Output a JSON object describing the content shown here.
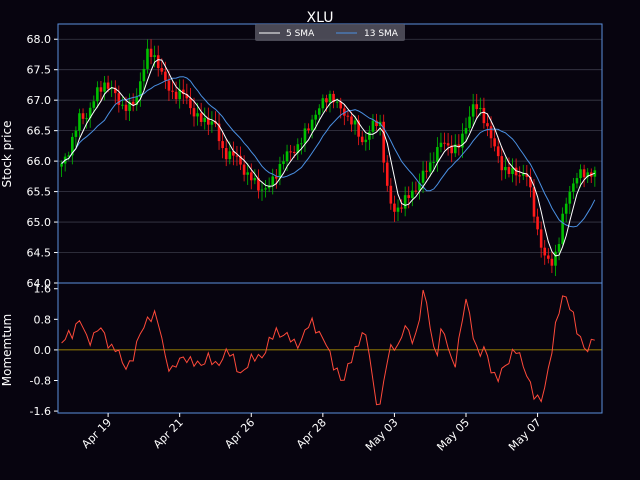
{
  "chart_data": {
    "type": "candlestick",
    "title": "XLU",
    "colors": {
      "background": "#07040f",
      "axes_border": "#5b8fdc",
      "grid": "#3a3a48",
      "up_candle": "#00c000",
      "down_candle": "#ff1a1a",
      "sma_fast": "#ffffff",
      "sma_slow": "#4a90e2",
      "momentum": "#ff4a3a",
      "zero_line": "#c8a800",
      "legend_bg": "#555560"
    },
    "legend": {
      "placement": "top-center",
      "entries": [
        "5 SMA",
        "13 SMA"
      ]
    },
    "price_panel": {
      "ylabel": "Stock price",
      "ylim": [
        64.0,
        68.25
      ],
      "yticks": [
        "64.0",
        "64.5",
        "65.0",
        "65.5",
        "66.0",
        "66.5",
        "67.0",
        "67.5",
        "68.0"
      ],
      "grid": true
    },
    "momentum_panel": {
      "ylabel": "Momemtum",
      "ylim": [
        -1.65,
        1.75
      ],
      "yticks": [
        "-1.6",
        "-0.8",
        "0.0",
        "0.8",
        "1.6"
      ],
      "zero_line": 0
    },
    "xaxis": {
      "ticks": [
        "Apr 19",
        "Apr 21",
        "Apr 26",
        "Apr 28",
        "May 03",
        "May 05",
        "May 07"
      ],
      "tick_positions": [
        14,
        34,
        54,
        74,
        94,
        114,
        134
      ],
      "xlim": [
        0,
        152
      ]
    },
    "close_series": [
      65.92,
      66.12,
      66.45,
      66.72,
      66.72,
      66.95,
      67.15,
      67.28,
      67.2,
      67.02,
      66.9,
      66.88,
      66.95,
      67.4,
      67.75,
      67.75,
      67.55,
      67.25,
      67.12,
      67.1,
      67.1,
      66.9,
      66.72,
      66.65,
      66.68,
      66.62,
      66.2,
      66.12,
      66.1,
      66.0,
      65.8,
      65.7,
      65.6,
      65.52,
      65.6,
      65.8,
      66.0,
      66.12,
      66.2,
      66.3,
      66.5,
      66.72,
      66.85,
      67.02,
      67.1,
      66.9,
      66.8,
      66.7,
      66.55,
      66.3,
      66.45,
      66.62,
      66.62,
      65.6,
      65.15,
      65.25,
      65.35,
      65.45,
      65.6,
      65.78,
      65.9,
      66.15,
      66.3,
      66.25,
      66.2,
      66.25,
      66.6,
      66.9,
      66.85,
      66.7,
      66.4,
      66.1,
      65.9,
      65.82,
      65.8,
      65.8,
      65.75,
      65.2,
      64.7,
      64.35,
      64.35,
      64.6,
      65.2,
      65.55,
      65.75,
      65.78,
      65.8,
      65.82
    ],
    "momentum_series": [
      0.1,
      0.45,
      0.5,
      0.75,
      0.35,
      0.3,
      0.55,
      0.4,
      0.1,
      0.0,
      -0.4,
      -0.35,
      -0.1,
      0.5,
      0.85,
      0.9,
      0.6,
      -0.2,
      -0.6,
      -0.35,
      -0.1,
      -0.3,
      -0.45,
      -0.3,
      -0.15,
      -0.5,
      -0.25,
      0.05,
      -0.3,
      -0.6,
      -0.45,
      -0.3,
      -0.15,
      -0.1,
      0.2,
      0.5,
      0.45,
      0.3,
      0.15,
      0.25,
      0.55,
      0.7,
      0.5,
      0.2,
      -0.3,
      -0.5,
      -0.9,
      -0.35,
      0.1,
      0.4,
      0.2,
      -1.1,
      -1.5,
      -0.4,
      0.25,
      0.05,
      0.6,
      0.35,
      0.4,
      1.5,
      0.9,
      -0.3,
      0.5,
      0.2,
      -0.5,
      0.3,
      1.4,
      0.6,
      -0.3,
      0.1,
      -0.4,
      -0.9,
      -0.5,
      -0.2,
      0.0,
      -0.3,
      -0.6,
      -1.2,
      -1.45,
      -0.8,
      0.0,
      0.9,
      1.6,
      1.1,
      0.5,
      0.2,
      0.0,
      0.3
    ]
  }
}
